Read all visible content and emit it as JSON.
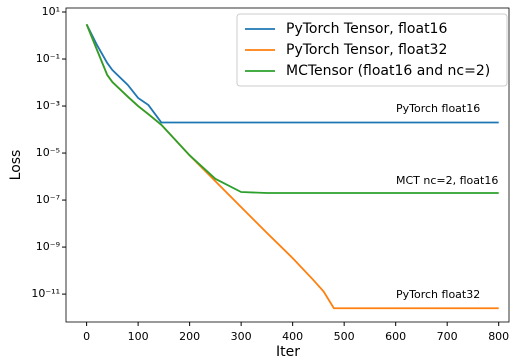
{
  "chart_data": {
    "type": "line",
    "xlabel": "Iter",
    "ylabel": "Loss",
    "yscale": "log",
    "x": [
      0,
      20,
      40,
      50,
      80,
      100,
      120,
      145,
      200,
      250,
      300,
      350,
      400,
      440,
      460,
      480,
      800
    ],
    "series": [
      {
        "name": "PyTorch Tensor, float16",
        "color": "#1f77b4",
        "values": [
          3,
          0.4,
          0.068,
          0.034,
          0.0079,
          0.0022,
          0.0011,
          0.0002,
          0.0002,
          0.0002,
          0.0002,
          0.0002,
          0.0002,
          0.0002,
          0.0002,
          0.0002,
          0.0002
        ]
      },
      {
        "name": "PyTorch Tensor, float32",
        "color": "#ff7f0e",
        "values": [
          3,
          0.25,
          0.021,
          0.0105,
          0.0025,
          0.001,
          0.00045,
          0.00016,
          8e-06,
          6.3e-07,
          5e-08,
          4e-09,
          3.4e-10,
          4e-11,
          1.3e-11,
          2.5e-12,
          2.5e-12
        ]
      },
      {
        "name": "MCTensor (float16 and nc=2)",
        "color": "#2ca02c",
        "values": [
          3,
          0.25,
          0.021,
          0.0105,
          0.0025,
          0.001,
          0.00045,
          0.00016,
          8e-06,
          8e-07,
          2.2e-07,
          2e-07,
          2e-07,
          2e-07,
          2e-07,
          2e-07,
          2e-07
        ]
      }
    ],
    "xlim": [
      -40,
      820
    ],
    "xticks": [
      0,
      100,
      200,
      300,
      400,
      500,
      600,
      700,
      800
    ],
    "ylim": [
      6.5e-13,
      14.8
    ],
    "yticks": [
      {
        "value": 10,
        "label": "10¹"
      },
      {
        "value": 0.1,
        "label": "10⁻¹"
      },
      {
        "value": 0.001,
        "label": "10⁻³"
      },
      {
        "value": 1e-05,
        "label": "10⁻⁵"
      },
      {
        "value": 1e-07,
        "label": "10⁻⁷"
      },
      {
        "value": 1e-09,
        "label": "10⁻⁹"
      },
      {
        "value": 1e-11,
        "label": "10⁻¹¹"
      }
    ],
    "legend": "upper right",
    "annotations": [
      "PyTorch float16",
      "MCT nc=2, float16",
      "PyTorch float32"
    ]
  }
}
